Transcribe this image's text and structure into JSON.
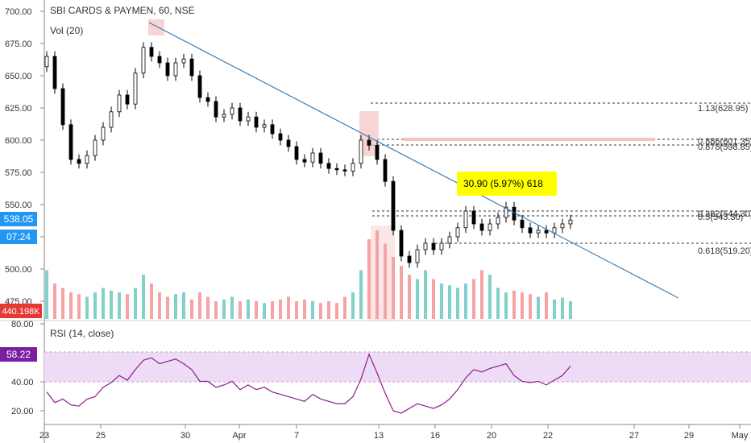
{
  "header": {
    "symbol_title": "SBI CARDS & PAYMEN, 60, NSE",
    "volume_label": "Vol (20)",
    "rsi_label": "RSI (14, close)"
  },
  "colors": {
    "up": "#26a69a",
    "down": "#000000",
    "vol_up": "#82d1c8",
    "vol_down": "#f5a3a3",
    "trendline": "#3a7fb5",
    "rsi_line": "#8e1b8e",
    "rsi_band": "#eedcf7",
    "price_badge": "#2196f3",
    "volume_badge": "#e53935",
    "rsi_badge": "#7b1fa2",
    "callout_bg": "#ffff00"
  },
  "badges": {
    "last_price": "538.05",
    "countdown": "07:24",
    "volume": "440.198K",
    "rsi_value": "58.22"
  },
  "annotation": {
    "measure_text": "30.90 (5.97%) 618"
  },
  "fib_levels": [
    {
      "label": "1.13(628.95)",
      "value": 628.95
    },
    {
      "label": "0.886(601.35)",
      "value": 601.35
    },
    {
      "label": "0.878(598.85)",
      "value": 598.85
    },
    {
      "label": "0.382(544.30)",
      "value": 544.3
    },
    {
      "label": "0.5(543.30)",
      "value": 543.3
    },
    {
      "label": "0.618(519.20)",
      "value": 519.2
    }
  ],
  "chart_data": [
    {
      "type": "candlestick",
      "title": "SBI CARDS & PAYMEN, 60, NSE",
      "ylim": [
        480,
        705
      ],
      "y_ticks": [
        "700.00",
        "675.00",
        "650.00",
        "625.00",
        "600.00",
        "575.00",
        "550.00",
        "525.00",
        "500.00",
        "475.00"
      ],
      "x_ticks": [
        "23",
        "25",
        "30",
        "Apr",
        "7",
        "13",
        "16",
        "20",
        "22",
        "27",
        "29",
        "May"
      ],
      "close_series": [
        665,
        640,
        612,
        585,
        582,
        588,
        600,
        610,
        622,
        635,
        628,
        652,
        672,
        665,
        660,
        650,
        660,
        663,
        650,
        633,
        630,
        618,
        620,
        625,
        615,
        618,
        610,
        612,
        605,
        600,
        595,
        585,
        583,
        590,
        582,
        578,
        577,
        576,
        582,
        600,
        596,
        585,
        568,
        530,
        510,
        505,
        515,
        520,
        515,
        520,
        525,
        532,
        545,
        535,
        530,
        535,
        540,
        548,
        538,
        532,
        528,
        530,
        528,
        532,
        535,
        538
      ],
      "trendline": [
        {
          "x_label": "27",
          "y": 687
        },
        {
          "x_label": "29",
          "y": 477
        }
      ],
      "measure": {
        "from": 518,
        "to": 548.9,
        "change": 30.9,
        "change_pct": 5.97,
        "bars": 618
      }
    },
    {
      "type": "bar",
      "title": "Vol (20)",
      "note": "volume histogram aligned with candles; values relative (last = 440.198K)",
      "values": [
        0.55,
        0.4,
        0.35,
        0.3,
        0.28,
        0.25,
        0.3,
        0.35,
        0.32,
        0.3,
        0.28,
        0.35,
        0.5,
        0.4,
        0.3,
        0.25,
        0.28,
        0.3,
        0.22,
        0.3,
        0.25,
        0.2,
        0.22,
        0.25,
        0.2,
        0.22,
        0.2,
        0.18,
        0.2,
        0.22,
        0.25,
        0.2,
        0.22,
        0.2,
        0.18,
        0.2,
        0.18,
        0.25,
        0.3,
        0.55,
        0.9,
        1.0,
        0.85,
        0.7,
        0.6,
        0.5,
        0.45,
        0.55,
        0.45,
        0.4,
        0.38,
        0.35,
        0.4,
        0.45,
        0.55,
        0.5,
        0.35,
        0.3,
        0.32,
        0.3,
        0.28,
        0.25,
        0.3,
        0.22,
        0.24,
        0.2
      ]
    },
    {
      "type": "line",
      "title": "RSI (14, close)",
      "ylim": [
        15,
        82
      ],
      "y_ticks": [
        "80.00",
        "40.00",
        "20.00"
      ],
      "band": [
        30,
        70
      ],
      "values": [
        36,
        27,
        30,
        25,
        24,
        30,
        32,
        40,
        44,
        50,
        46,
        55,
        63,
        65,
        60,
        62,
        64,
        60,
        55,
        45,
        45,
        40,
        42,
        45,
        38,
        42,
        38,
        40,
        36,
        34,
        32,
        30,
        28,
        34,
        30,
        28,
        26,
        26,
        32,
        47,
        68,
        52,
        35,
        20,
        18,
        22,
        26,
        24,
        22,
        25,
        30,
        38,
        48,
        55,
        53,
        56,
        58,
        60,
        50,
        45,
        44,
        45,
        42,
        46,
        50,
        58
      ]
    }
  ]
}
